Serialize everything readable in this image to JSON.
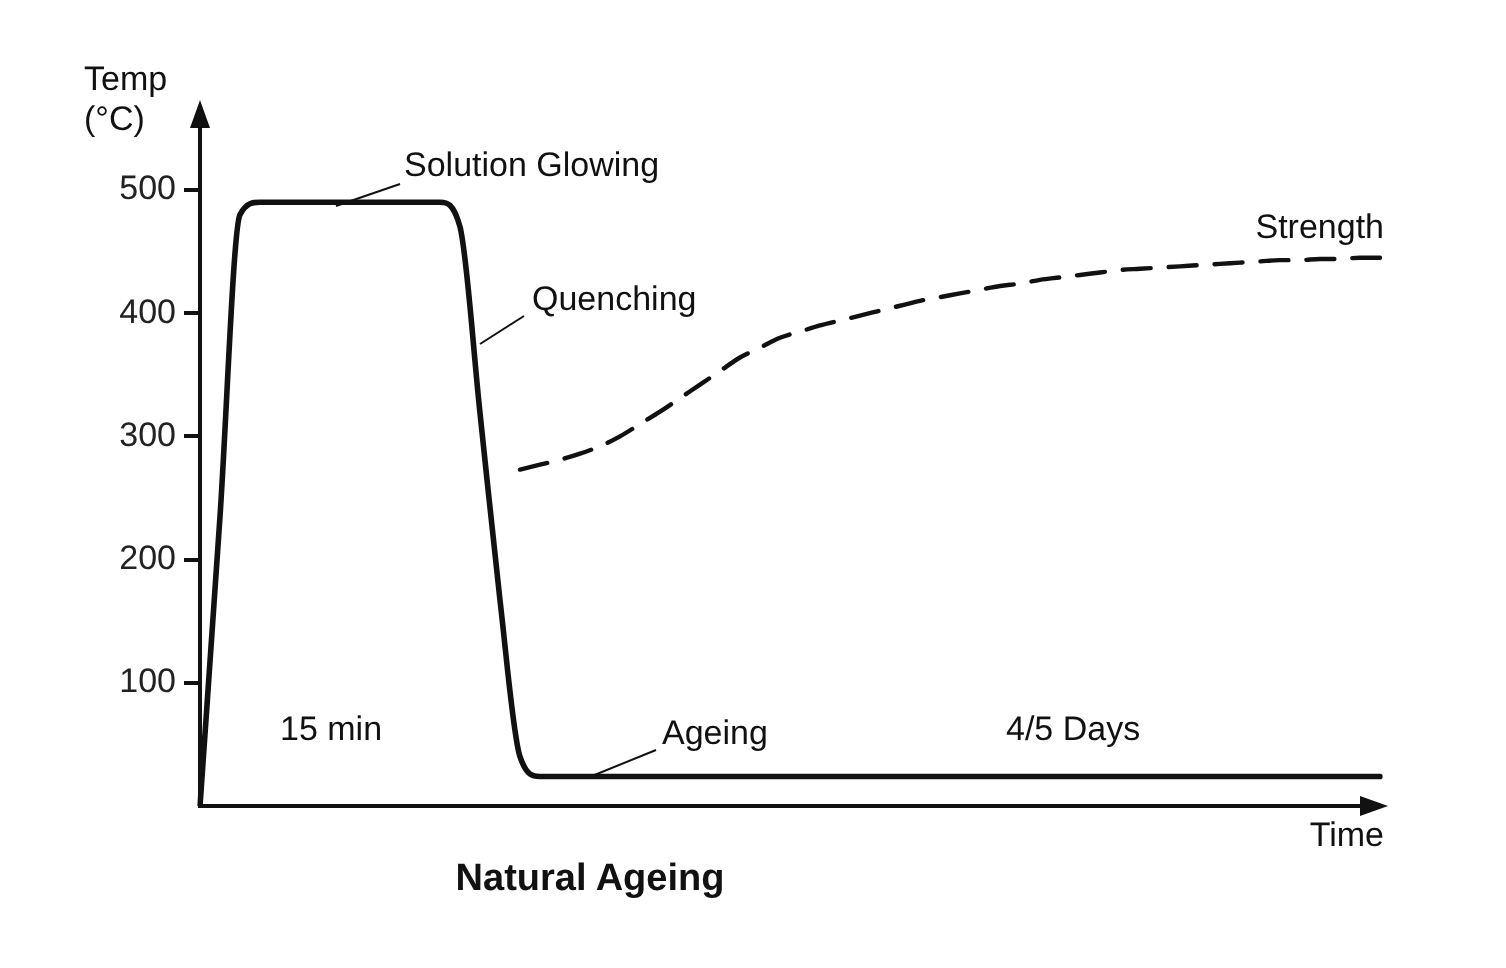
{
  "chart_data": {
    "type": "line",
    "title": "Natural Ageing",
    "xlabel": "Time",
    "ylabel": "Temp (°C)",
    "categories": [
      null,
      null,
      null,
      null,
      null,
      null,
      null,
      null,
      null,
      null,
      null,
      null,
      null,
      null,
      null,
      null,
      null,
      null,
      null,
      null,
      null,
      null,
      null,
      null,
      null,
      null,
      null,
      null,
      null,
      null,
      null,
      null,
      null,
      null,
      null,
      null,
      null,
      null,
      null,
      null,
      null,
      null,
      null,
      null,
      null,
      null,
      null,
      null,
      null,
      null,
      null,
      null,
      null,
      null,
      null,
      null,
      null,
      null,
      null,
      null
    ],
    "series": [
      {
        "color": "#111111",
        "line_style": "solid",
        "values": [
          0,
          235,
          480,
          490,
          490,
          490,
          490,
          490,
          490,
          490,
          490,
          490,
          490,
          470,
          319,
          167,
          40,
          24,
          24,
          24,
          24,
          24,
          24,
          24,
          24,
          24,
          24,
          24,
          24,
          24,
          24,
          24,
          24,
          24,
          24,
          24,
          24,
          24,
          24,
          24,
          24,
          24,
          24,
          24,
          24,
          24,
          24,
          24,
          24,
          24,
          24,
          24,
          24,
          24,
          24,
          24,
          24,
          24,
          24,
          24
        ]
      },
      {
        "name": "Strength",
        "color": "#111111",
        "line_style": "dashed",
        "values": [
          null,
          null,
          null,
          null,
          null,
          null,
          null,
          null,
          null,
          null,
          null,
          null,
          null,
          null,
          null,
          null,
          273,
          277,
          281,
          286,
          292,
          300,
          310,
          320,
          331,
          342,
          353,
          364,
          372,
          380,
          385,
          390,
          394,
          398,
          402,
          406,
          410,
          413,
          416,
          419,
          422,
          424,
          427,
          429,
          431,
          433,
          435,
          436,
          437,
          438,
          439,
          440,
          441,
          442,
          443,
          443,
          444,
          444,
          445,
          445
        ]
      }
    ],
    "ylim": [
      0,
      560
    ],
    "yticks": [
      100,
      200,
      300,
      400,
      500
    ],
    "tick_labels": "y",
    "grid": false,
    "marker": "none",
    "annotations": [
      "Solution Glowing",
      "Quenching",
      "Ageing",
      "15 min",
      "4/5 Days"
    ]
  }
}
